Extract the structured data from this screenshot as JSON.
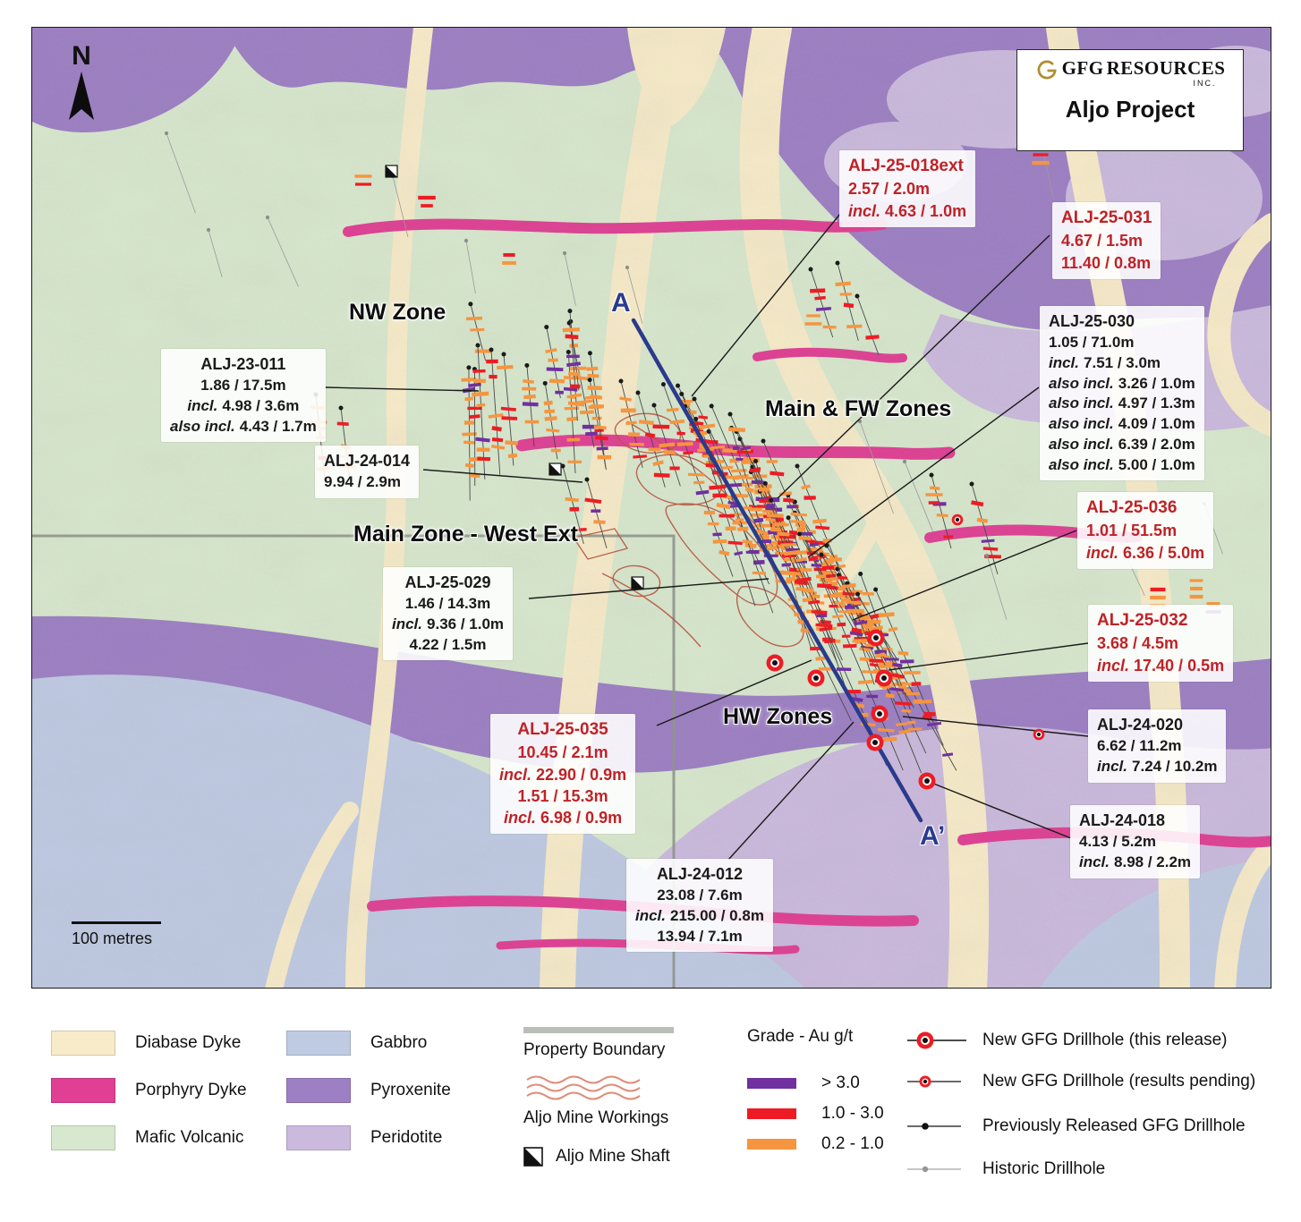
{
  "header": {
    "company": "GFG",
    "company2": "RESOURCES",
    "company_suffix": "INC.",
    "project_title": "Aljo Project"
  },
  "north_label": "N",
  "scale_label": "100 metres",
  "section_line": {
    "start_label": "A",
    "end_label": "A’"
  },
  "zone_labels": {
    "nw": "NW Zone",
    "main_fw": "Main & FW Zones",
    "main_west": "Main Zone - West Ext",
    "hw": "HW Zones"
  },
  "annotations": [
    {
      "id": "ALJ-25-018ext",
      "style": "red",
      "lines": [
        {
          "prefix": "",
          "text": "2.57 / 2.0m"
        },
        {
          "prefix": "incl.",
          "text": "4.63 / 1.0m"
        }
      ]
    },
    {
      "id": "ALJ-25-031",
      "style": "red",
      "lines": [
        {
          "prefix": "",
          "text": "4.67 / 1.5m"
        },
        {
          "prefix": "",
          "text": "11.40 / 0.8m"
        }
      ]
    },
    {
      "id": "ALJ-25-030",
      "style": "black",
      "lines": [
        {
          "prefix": "",
          "text": "1.05 / 71.0m"
        },
        {
          "prefix": "incl.",
          "text": "7.51 / 3.0m"
        },
        {
          "prefix": "also incl.",
          "text": "3.26 / 1.0m"
        },
        {
          "prefix": "also incl.",
          "text": "4.97 / 1.3m"
        },
        {
          "prefix": "also incl.",
          "text": "4.09 / 1.0m"
        },
        {
          "prefix": "also incl.",
          "text": "6.39 / 2.0m"
        },
        {
          "prefix": "also incl.",
          "text": "5.00 / 1.0m"
        }
      ]
    },
    {
      "id": "ALJ-23-011",
      "style": "black",
      "lines": [
        {
          "prefix": "",
          "text": "1.86 / 17.5m"
        },
        {
          "prefix": "incl.",
          "text": "4.98 / 3.6m"
        },
        {
          "prefix": "also incl.",
          "text": "4.43 / 1.7m"
        }
      ]
    },
    {
      "id": "ALJ-24-014",
      "style": "black",
      "lines": [
        {
          "prefix": "",
          "text": "9.94 / 2.9m"
        }
      ]
    },
    {
      "id": "ALJ-25-029",
      "style": "black",
      "lines": [
        {
          "prefix": "",
          "text": "1.46 / 14.3m"
        },
        {
          "prefix": "incl.",
          "text": "9.36 / 1.0m"
        },
        {
          "prefix": "",
          "text": "4.22 / 1.5m"
        }
      ]
    },
    {
      "id": "ALJ-25-036",
      "style": "red",
      "lines": [
        {
          "prefix": "",
          "text": "1.01 / 51.5m"
        },
        {
          "prefix": "incl.",
          "text": "6.36 / 5.0m"
        }
      ]
    },
    {
      "id": "ALJ-25-032",
      "style": "red",
      "lines": [
        {
          "prefix": "",
          "text": "3.68 / 4.5m"
        },
        {
          "prefix": "incl.",
          "text": "17.40 / 0.5m"
        }
      ]
    },
    {
      "id": "ALJ-24-020",
      "style": "black",
      "lines": [
        {
          "prefix": "",
          "text": "6.62 / 11.2m"
        },
        {
          "prefix": "incl.",
          "text": "7.24 / 10.2m"
        }
      ]
    },
    {
      "id": "ALJ-24-018",
      "style": "black",
      "lines": [
        {
          "prefix": "",
          "text": "4.13 / 5.2m"
        },
        {
          "prefix": "incl.",
          "text": "8.98 / 2.2m"
        }
      ]
    },
    {
      "id": "ALJ-25-035",
      "style": "red",
      "lines": [
        {
          "prefix": "",
          "text": "10.45 / 2.1m"
        },
        {
          "prefix": "incl.",
          "text": "22.90 / 0.9m"
        },
        {
          "prefix": "",
          "text": "1.51 / 15.3m"
        },
        {
          "prefix": "incl.",
          "text": "6.98 / 0.9m"
        }
      ]
    },
    {
      "id": "ALJ-24-012",
      "style": "black",
      "lines": [
        {
          "prefix": "",
          "text": "23.08 / 7.6m"
        },
        {
          "prefix": "incl.",
          "text": "215.00 / 0.8m"
        },
        {
          "prefix": "",
          "text": "13.94 / 7.1m"
        }
      ]
    }
  ],
  "legend": {
    "geology": [
      {
        "label": "Diabase Dyke"
      },
      {
        "label": "Porphyry Dyke"
      },
      {
        "label": "Mafic Volcanic"
      },
      {
        "label": "Gabbro"
      },
      {
        "label": "Pyroxenite"
      },
      {
        "label": "Peridotite"
      }
    ],
    "property_boundary_label": "Property Boundary",
    "mine_workings_label": "Aljo Mine Workings",
    "mine_shaft_label": "Aljo Mine Shaft",
    "grade_title": "Grade - Au g/t",
    "grade_items": [
      {
        "label": "> 3.0"
      },
      {
        "label": "1.0 - 3.0"
      },
      {
        "label": "0.2 - 1.0"
      }
    ],
    "drillholes": [
      {
        "label": "New GFG Drillhole (this release)"
      },
      {
        "label": "New GFG Drillhole (results pending)"
      },
      {
        "label": "Previously Released GFG Drillhole"
      },
      {
        "label": "Historic Drillhole"
      }
    ]
  },
  "colors": {
    "diabase": "#f7ebc9",
    "porphyry": "#e03f94",
    "mafic": "#d8e8ce",
    "gabbro": "#bfcae3",
    "pyroxenite": "#9d7fc4",
    "peridotite": "#cbbade",
    "grade_high": "#7030a0",
    "grade_mid": "#ed1c24",
    "grade_low": "#f6953f",
    "section_line": "#2a3a8c",
    "highlight_red": "#bf2227",
    "boundary_gray": "#8f948c",
    "workings_red": "#b8563f"
  }
}
